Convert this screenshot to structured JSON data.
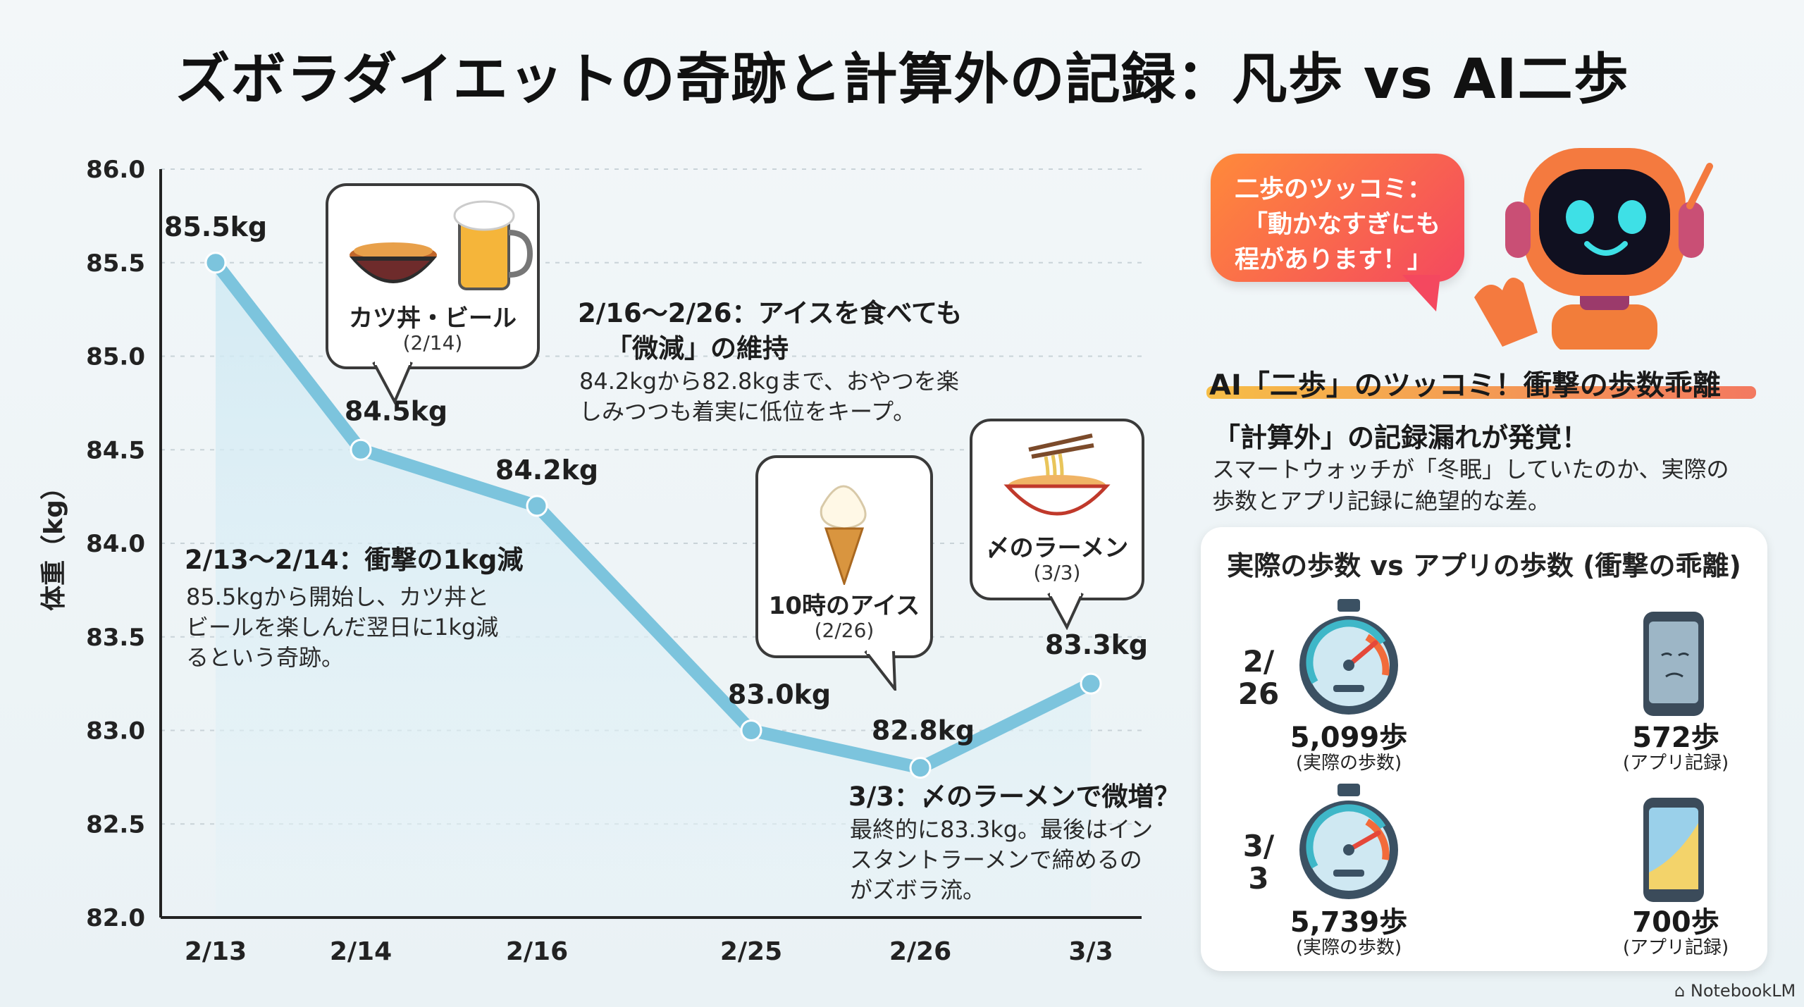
{
  "title": "ズボラダイエットの奇跡と計算外の記録：凡歩 vs AI二歩",
  "chart_data": {
    "type": "line",
    "ylabel": "体重（kg）",
    "ylim": [
      82.0,
      86.0
    ],
    "yticks": [
      "82.0",
      "82.5",
      "83.0",
      "83.5",
      "84.0",
      "84.5",
      "85.0",
      "85.5",
      "86.0"
    ],
    "x": [
      "2/13",
      "2/14",
      "2/16",
      "2/25",
      "2/26",
      "3/3"
    ],
    "values": [
      85.5,
      84.5,
      84.2,
      83.0,
      82.8,
      83.25
    ],
    "data_labels": [
      "85.5kg",
      "84.5kg",
      "84.2kg",
      "83.0kg",
      "82.8kg",
      "83.3kg"
    ],
    "grid": true,
    "color": "#7cc4dd"
  },
  "annotations": {
    "a1_head": "2/13〜2/14：衝撃の1kg減",
    "a1_body": [
      "85.5kgから開始し、カツ丼と",
      "ビールを楽しんだ翌日に1kg減",
      "るという奇跡。"
    ],
    "a2_head": [
      "2/16〜2/26：アイスを食べても",
      "「微減」の維持"
    ],
    "a2_body": [
      "84.2kgから82.8kgまで、おやつを楽",
      "しみつつも着実に低位をキープ。"
    ],
    "a3_head": "3/3：〆のラーメンで微増？",
    "a3_body": [
      "最終的に83.3kg。最後はイン",
      "スタントラーメンで締めるの",
      "がズボラ流。"
    ]
  },
  "bubbles": [
    {
      "label": "カツ丼・ビール",
      "date": "(2/14)",
      "icon": "katsudon-beer-icon"
    },
    {
      "label": "10時のアイス",
      "date": "(2/26)",
      "icon": "soft-serve-icon"
    },
    {
      "label": "〆のラーメン",
      "date": "(3/3)",
      "icon": "ramen-icon"
    }
  ],
  "robot": {
    "speech": [
      "二歩のツッコミ：",
      "「動かなすぎにも",
      "程があります！」"
    ],
    "icon": "robot-icon"
  },
  "steps_section": {
    "title": "AI「二歩」のツッコミ！衝撃の歩数乖離",
    "subtitle": "「計算外」の記録漏れが発覚！",
    "body": [
      "スマートウォッチが「冬眠」していたのか、実際の",
      "歩数とアプリ記録に絶望的な差。"
    ],
    "panel_title": "実際の歩数 vs アプリの歩数 (衝撃の乖離)",
    "rows": [
      {
        "date": [
          "2/",
          "26"
        ],
        "actual": "5,099歩",
        "actual_label": "(実際の歩数)",
        "app": "572歩",
        "app_label": "(アプリ記録)"
      },
      {
        "date": [
          "3/",
          "3"
        ],
        "actual": "5,739歩",
        "actual_label": "(実際の歩数)",
        "app": "700歩",
        "app_label": "(アプリ記録)"
      }
    ]
  },
  "footer": "NotebookLM"
}
